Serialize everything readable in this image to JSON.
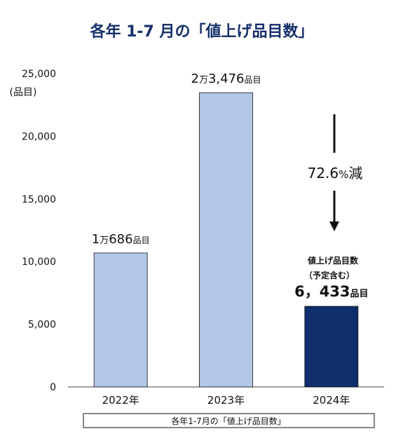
{
  "chart_data": {
    "type": "bar",
    "title": "各年 1-7 月の「値上げ品目数」",
    "ylabel": "(品目)",
    "ylim": [
      0,
      25000
    ],
    "yticks": [
      "0",
      "5,000",
      "10,000",
      "15,000",
      "20,000",
      "25,000"
    ],
    "categories": [
      "2022年",
      "2023年",
      "2024年"
    ],
    "values": [
      10686,
      23476,
      6433
    ],
    "colors": [
      "#b4c7e7",
      "#b4c7e7",
      "#0e2f6b"
    ],
    "labels": [
      {
        "num": "1",
        "man": "万",
        "rest": "686",
        "unit": "品目"
      },
      {
        "num": "2",
        "man": "万",
        "rest": "3,476",
        "unit": "品目"
      },
      {
        "num": "6，433",
        "man": "",
        "rest": "",
        "unit": "品目"
      }
    ],
    "note_line1": "値上げ品目数",
    "note_line2": "（予定含む）",
    "change_label": "72.6",
    "change_pct": "%",
    "change_suffix": "減",
    "caption": "各年1-7月の「値上げ品目数」"
  }
}
